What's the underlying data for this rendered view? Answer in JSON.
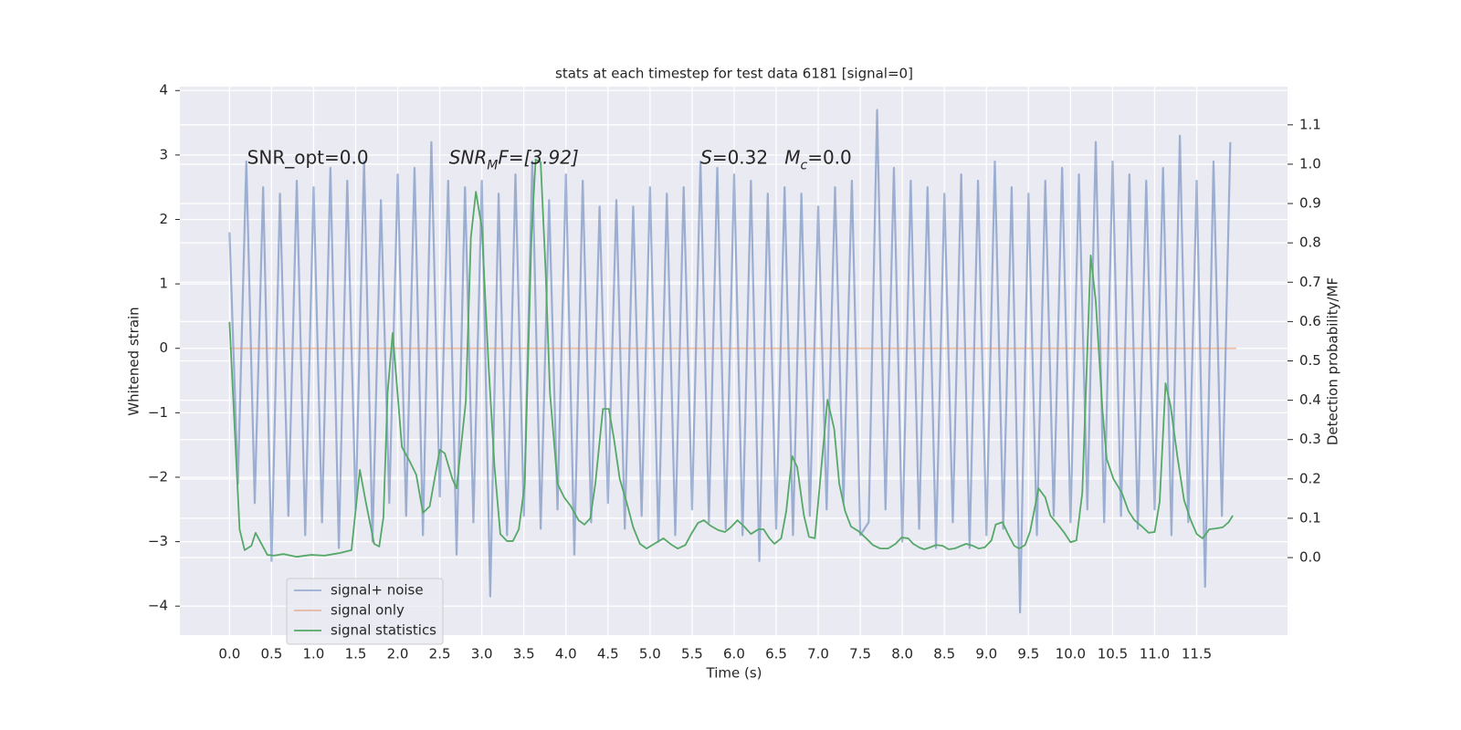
{
  "chart_data": {
    "type": "line",
    "title": "stats at each timestep for test data 6181 [signal=0]",
    "xlabel": "Time (s)",
    "ylabel": "Whitened strain",
    "y2label": "Detection probability/MF",
    "xlim": [
      -0.59,
      12.58
    ],
    "ylim": [
      -4.45,
      4.06
    ],
    "y2lim": [
      -0.197,
      1.197
    ],
    "grid": true,
    "legend": "lower left",
    "xticks": [
      {
        "value": 0,
        "label": "0.0"
      },
      {
        "value": 0.5,
        "label": "0.5"
      },
      {
        "value": 1,
        "label": "1.0"
      },
      {
        "value": 1.5,
        "label": "1.5"
      },
      {
        "value": 2,
        "label": "2.0"
      },
      {
        "value": 2.5,
        "label": "2.5"
      },
      {
        "value": 3,
        "label": "3.0"
      },
      {
        "value": 3.5,
        "label": "3.5"
      },
      {
        "value": 4,
        "label": "4.0"
      },
      {
        "value": 4.5,
        "label": "4.5"
      },
      {
        "value": 5,
        "label": "5.0"
      },
      {
        "value": 5.5,
        "label": "5.5"
      },
      {
        "value": 6,
        "label": "6.0"
      },
      {
        "value": 6.5,
        "label": "6.5"
      },
      {
        "value": 7,
        "label": "7.0"
      },
      {
        "value": 7.5,
        "label": "7.5"
      },
      {
        "value": 8,
        "label": "8.0"
      },
      {
        "value": 8.5,
        "label": "8.5"
      },
      {
        "value": 9,
        "label": "9.0"
      },
      {
        "value": 9.5,
        "label": "9.5"
      },
      {
        "value": 10,
        "label": "10.0"
      },
      {
        "value": 10.5,
        "label": "10.5"
      },
      {
        "value": 11,
        "label": "11.0"
      },
      {
        "value": 11.5,
        "label": "11.5"
      }
    ],
    "yticks": [
      {
        "value": -4,
        "label": "−4"
      },
      {
        "value": -3,
        "label": "−3"
      },
      {
        "value": -2,
        "label": "−2"
      },
      {
        "value": -1,
        "label": "−1"
      },
      0,
      1,
      2,
      3,
      4
    ],
    "y2ticks": [
      {
        "value": 0,
        "label": "0.0"
      },
      {
        "value": 0.1,
        "label": "0.1"
      },
      {
        "value": 0.2,
        "label": "0.2"
      },
      {
        "value": 0.3,
        "label": "0.3"
      },
      {
        "value": 0.4,
        "label": "0.4"
      },
      {
        "value": 0.5,
        "label": "0.5"
      },
      {
        "value": 0.6,
        "label": "0.6"
      },
      {
        "value": 0.7,
        "label": "0.7"
      },
      {
        "value": 0.8,
        "label": "0.8"
      },
      {
        "value": 0.9,
        "label": "0.9"
      },
      {
        "value": 1.0,
        "label": "1.0"
      },
      {
        "value": 1.1,
        "label": "1.1"
      }
    ],
    "annotations": [
      {
        "x": 0.21,
        "y": 2.95,
        "parts": [
          {
            "text": "SNR_opt=0.0",
            "style": "normal"
          }
        ]
      },
      {
        "x": 2.61,
        "y": 2.95,
        "parts": [
          {
            "text": "SNR",
            "style": "italic"
          },
          {
            "text": "M",
            "style": "sub"
          },
          {
            "text": "F=[3.92]",
            "style": "italic"
          }
        ]
      },
      {
        "x": 5.6,
        "y": 2.95,
        "parts": [
          {
            "text": "S",
            "style": "italic"
          },
          {
            "text": "=0.32",
            "style": "normal"
          }
        ]
      },
      {
        "x": 6.6,
        "y": 2.95,
        "parts": [
          {
            "text": "M",
            "style": "italic"
          },
          {
            "text": "c",
            "style": "sub"
          },
          {
            "text": "=0.0",
            "style": "normal"
          }
        ]
      }
    ],
    "series": [
      {
        "name": "signal+ noise",
        "color": "#4c72b0",
        "opacity": 0.5,
        "axis": "y",
        "x": [
          0,
          0.1,
          0.2,
          0.3,
          0.4,
          0.5,
          0.6,
          0.7,
          0.8,
          0.9,
          1.0,
          1.1,
          1.2,
          1.3,
          1.4,
          1.5,
          1.6,
          1.7,
          1.8,
          1.9,
          2.0,
          2.1,
          2.2,
          2.3,
          2.4,
          2.5,
          2.6,
          2.7,
          2.8,
          2.9,
          3.0,
          3.1,
          3.2,
          3.3,
          3.4,
          3.5,
          3.6,
          3.7,
          3.8,
          3.9,
          4.0,
          4.1,
          4.2,
          4.3,
          4.4,
          4.5,
          4.6,
          4.7,
          4.8,
          4.9,
          5.0,
          5.1,
          5.2,
          5.3,
          5.4,
          5.5,
          5.6,
          5.7,
          5.8,
          5.9,
          6.0,
          6.1,
          6.2,
          6.3,
          6.4,
          6.5,
          6.6,
          6.7,
          6.8,
          6.9,
          7.0,
          7.1,
          7.2,
          7.3,
          7.4,
          7.5,
          7.6,
          7.7,
          7.8,
          7.9,
          8.0,
          8.1,
          8.2,
          8.3,
          8.4,
          8.5,
          8.6,
          8.7,
          8.8,
          8.9,
          9.0,
          9.1,
          9.2,
          9.3,
          9.4,
          9.5,
          9.6,
          9.7,
          9.8,
          9.9,
          10.0,
          10.1,
          10.2,
          10.3,
          10.4,
          10.5,
          10.6,
          10.7,
          10.8,
          10.9,
          11.0,
          11.1,
          11.2,
          11.3,
          11.4,
          11.5,
          11.6,
          11.7,
          11.8,
          11.9
        ],
        "values": [
          1.8,
          -2.1,
          2.9,
          -2.4,
          2.5,
          -3.3,
          2.4,
          -2.6,
          2.6,
          -2.9,
          2.5,
          -2.7,
          2.8,
          -3.1,
          2.6,
          -2.5,
          2.9,
          -3.0,
          2.3,
          -2.4,
          2.7,
          -2.6,
          2.8,
          -2.9,
          3.2,
          -2.3,
          2.6,
          -3.2,
          2.5,
          -2.7,
          2.6,
          -3.85,
          2.4,
          -2.9,
          2.7,
          -2.6,
          2.9,
          -2.8,
          2.3,
          -2.5,
          2.7,
          -3.2,
          2.6,
          -2.7,
          2.2,
          -2.4,
          2.3,
          -2.8,
          2.2,
          -2.6,
          2.5,
          -3.0,
          2.4,
          -2.9,
          2.5,
          -2.5,
          2.9,
          -2.7,
          2.8,
          -2.8,
          2.7,
          -2.9,
          2.6,
          -3.3,
          2.4,
          -2.8,
          2.5,
          -2.9,
          2.4,
          -2.6,
          2.2,
          -2.5,
          2.5,
          -2.4,
          2.6,
          -2.9,
          -2.7,
          3.7,
          -2.5,
          2.8,
          -3.0,
          2.6,
          -2.8,
          2.5,
          -3.1,
          2.4,
          -2.7,
          2.7,
          -3.1,
          2.6,
          -2.9,
          2.9,
          -2.8,
          2.5,
          -4.1,
          2.4,
          -2.9,
          2.6,
          -2.6,
          2.8,
          -2.7,
          2.7,
          -2.5,
          3.2,
          -2.7,
          2.9,
          -2.6,
          2.7,
          -2.8,
          2.6,
          -2.5,
          2.8,
          -2.9,
          3.3,
          -2.7,
          2.6,
          -3.7,
          2.9,
          -2.6,
          3.2
        ]
      },
      {
        "name": "signal only",
        "color": "#dd8452",
        "opacity": 0.5,
        "axis": "y",
        "x": [
          0,
          11.97
        ],
        "values": [
          0,
          0
        ]
      },
      {
        "name": "signal statistics",
        "color": "#55a868",
        "opacity": 1,
        "axis": "y2",
        "x": [
          0,
          0.12,
          0.18,
          0.26,
          0.31,
          0.45,
          0.53,
          0.64,
          0.8,
          0.97,
          1.13,
          1.24,
          1.32,
          1.45,
          1.55,
          1.62,
          1.72,
          1.78,
          1.83,
          1.88,
          1.94,
          2.05,
          2.14,
          2.22,
          2.3,
          2.38,
          2.5,
          2.56,
          2.65,
          2.7,
          2.81,
          2.87,
          2.93,
          3.0,
          3.08,
          3.15,
          3.22,
          3.3,
          3.37,
          3.44,
          3.51,
          3.59,
          3.64,
          3.7,
          3.76,
          3.81,
          3.9,
          3.98,
          4.06,
          4.15,
          4.22,
          4.29,
          4.35,
          4.44,
          4.51,
          4.57,
          4.64,
          4.72,
          4.8,
          4.88,
          4.96,
          5.05,
          5.16,
          5.26,
          5.33,
          5.42,
          5.49,
          5.57,
          5.64,
          5.72,
          5.81,
          5.89,
          5.96,
          6.04,
          6.12,
          6.2,
          6.29,
          6.35,
          6.42,
          6.48,
          6.56,
          6.62,
          6.69,
          6.75,
          6.83,
          6.89,
          6.96,
          7.02,
          7.11,
          7.19,
          7.25,
          7.32,
          7.39,
          7.48,
          7.57,
          7.65,
          7.74,
          7.83,
          7.92,
          7.99,
          8.07,
          8.13,
          8.2,
          8.26,
          8.33,
          8.4,
          8.48,
          8.55,
          8.62,
          8.7,
          8.76,
          8.84,
          8.91,
          8.98,
          9.06,
          9.11,
          9.19,
          9.25,
          9.33,
          9.39,
          9.46,
          9.52,
          9.62,
          9.7,
          9.76,
          9.85,
          9.92,
          10.0,
          10.07,
          10.14,
          10.24,
          10.3,
          10.38,
          10.43,
          10.51,
          10.61,
          10.69,
          10.76,
          10.85,
          10.93,
          11.0,
          11.06,
          11.13,
          11.19,
          11.27,
          11.35,
          11.43,
          11.5,
          11.57,
          11.65,
          11.73,
          11.81,
          11.88,
          11.93
        ],
        "values": [
          0.599,
          0.072,
          0.019,
          0.03,
          0.063,
          0.007,
          0.005,
          0.009,
          0.002,
          0.007,
          0.005,
          0.009,
          0.012,
          0.019,
          0.223,
          0.142,
          0.035,
          0.028,
          0.102,
          0.42,
          0.571,
          0.281,
          0.246,
          0.211,
          0.114,
          0.13,
          0.274,
          0.265,
          0.2,
          0.176,
          0.397,
          0.814,
          0.93,
          0.838,
          0.49,
          0.234,
          0.06,
          0.042,
          0.042,
          0.072,
          0.188,
          0.814,
          1.012,
          1.005,
          0.722,
          0.42,
          0.188,
          0.153,
          0.13,
          0.095,
          0.084,
          0.1,
          0.188,
          0.378,
          0.378,
          0.304,
          0.2,
          0.142,
          0.077,
          0.035,
          0.023,
          0.035,
          0.049,
          0.032,
          0.023,
          0.032,
          0.06,
          0.088,
          0.095,
          0.081,
          0.07,
          0.065,
          0.077,
          0.095,
          0.079,
          0.06,
          0.072,
          0.072,
          0.049,
          0.035,
          0.049,
          0.118,
          0.258,
          0.23,
          0.107,
          0.053,
          0.049,
          0.188,
          0.401,
          0.327,
          0.188,
          0.118,
          0.079,
          0.067,
          0.049,
          0.032,
          0.023,
          0.023,
          0.035,
          0.051,
          0.049,
          0.035,
          0.026,
          0.021,
          0.026,
          0.032,
          0.03,
          0.021,
          0.023,
          0.03,
          0.035,
          0.03,
          0.023,
          0.026,
          0.044,
          0.084,
          0.09,
          0.063,
          0.03,
          0.023,
          0.032,
          0.067,
          0.176,
          0.153,
          0.107,
          0.084,
          0.065,
          0.039,
          0.044,
          0.165,
          0.768,
          0.652,
          0.374,
          0.251,
          0.2,
          0.165,
          0.118,
          0.095,
          0.079,
          0.063,
          0.065,
          0.142,
          0.443,
          0.385,
          0.258,
          0.146,
          0.095,
          0.06,
          0.049,
          0.072,
          0.074,
          0.077,
          0.09,
          0.107
        ]
      }
    ]
  }
}
